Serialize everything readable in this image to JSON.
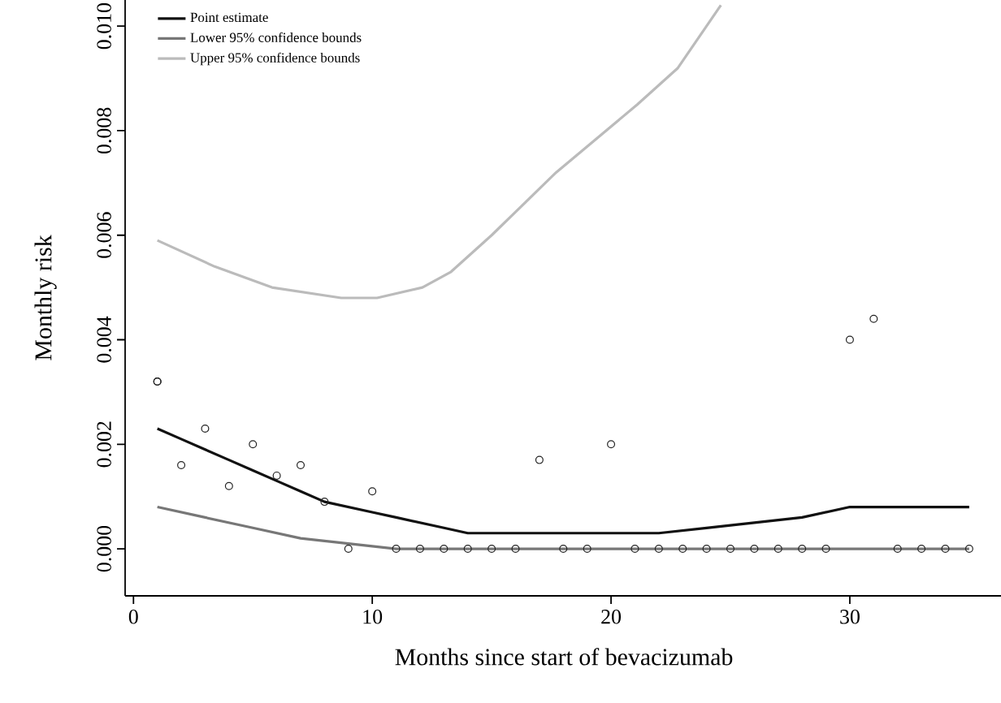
{
  "chart_data": {
    "type": "line",
    "xlabel": "Months since start of bevacizumab",
    "ylabel": "Monthly risk",
    "xlim": [
      -0.35,
      36.4
    ],
    "ylim": [
      -0.0009,
      0.0105
    ],
    "xticks": [
      0,
      10,
      20,
      30
    ],
    "yticks": [
      {
        "value": 0,
        "label": "0.000"
      },
      {
        "value": 0.002,
        "label": "0.002"
      },
      {
        "value": 0.004,
        "label": "0.004"
      },
      {
        "value": 0.006,
        "label": "0.006"
      },
      {
        "value": 0.008,
        "label": "0.008"
      },
      {
        "value": 0.01,
        "label": "0.010"
      }
    ],
    "legend": "top left",
    "grid": false,
    "line_style": "solid",
    "series": [
      {
        "type": "scatter",
        "marker": "circle",
        "color": "#222222",
        "x": [
          1,
          1,
          2,
          3,
          4,
          5,
          6,
          7,
          8,
          9,
          10,
          11,
          12,
          13,
          14,
          15,
          16,
          17,
          18,
          19,
          20,
          21,
          22,
          23,
          24,
          25,
          26,
          27,
          28,
          29,
          30,
          31,
          32,
          33,
          34,
          35
        ],
        "values": [
          0.0032,
          0.0032,
          0.0016,
          0.0023,
          0.0012,
          0.002,
          0.0014,
          0.0016,
          0.0009,
          0,
          0.0011,
          0,
          0,
          0,
          0,
          0,
          0,
          0.0017,
          0,
          0,
          0.002,
          0,
          0,
          0,
          0,
          0,
          0,
          0,
          0,
          0,
          0.004,
          0.0044,
          0,
          0,
          0,
          0
        ]
      },
      {
        "name": "Point estimate",
        "color": "#111111",
        "x": [
          1,
          2,
          3,
          4,
          5,
          6,
          7,
          8,
          9,
          10,
          11,
          12,
          13,
          14,
          16,
          18,
          20,
          22,
          24,
          26,
          28,
          30,
          32,
          33,
          35
        ],
        "values": [
          0.0023,
          0.0021,
          0.0019,
          0.0017,
          0.0015,
          0.0013,
          0.0011,
          0.0009,
          0.0008,
          0.0007,
          0.0006,
          0.0005,
          0.0004,
          0.0003,
          0.0003,
          0.0003,
          0.0003,
          0.0003,
          0.0004,
          0.0005,
          0.0006,
          0.0008,
          0.0008,
          0.0008,
          0.0008
        ]
      },
      {
        "name": "Lower 95% confidence bounds",
        "color": "#777777",
        "x": [
          1,
          3,
          5,
          7,
          9,
          11,
          15,
          20,
          25,
          30,
          35
        ],
        "values": [
          0.0008,
          0.0006,
          0.0004,
          0.0002,
          0.0001,
          0,
          0,
          0,
          0,
          0,
          0
        ]
      },
      {
        "name": "Upper 95% confidence bounds",
        "color": "#bbbbbb",
        "x": [
          1,
          3.4,
          5.8,
          8.7,
          10.2,
          12.1,
          13.3,
          15,
          17.7,
          21.1,
          22.8,
          24.6
        ],
        "values": [
          0.0059,
          0.0054,
          0.005,
          0.0048,
          0.0048,
          0.005,
          0.0053,
          0.006,
          0.0072,
          0.0085,
          0.0092,
          0.0104
        ]
      }
    ]
  }
}
